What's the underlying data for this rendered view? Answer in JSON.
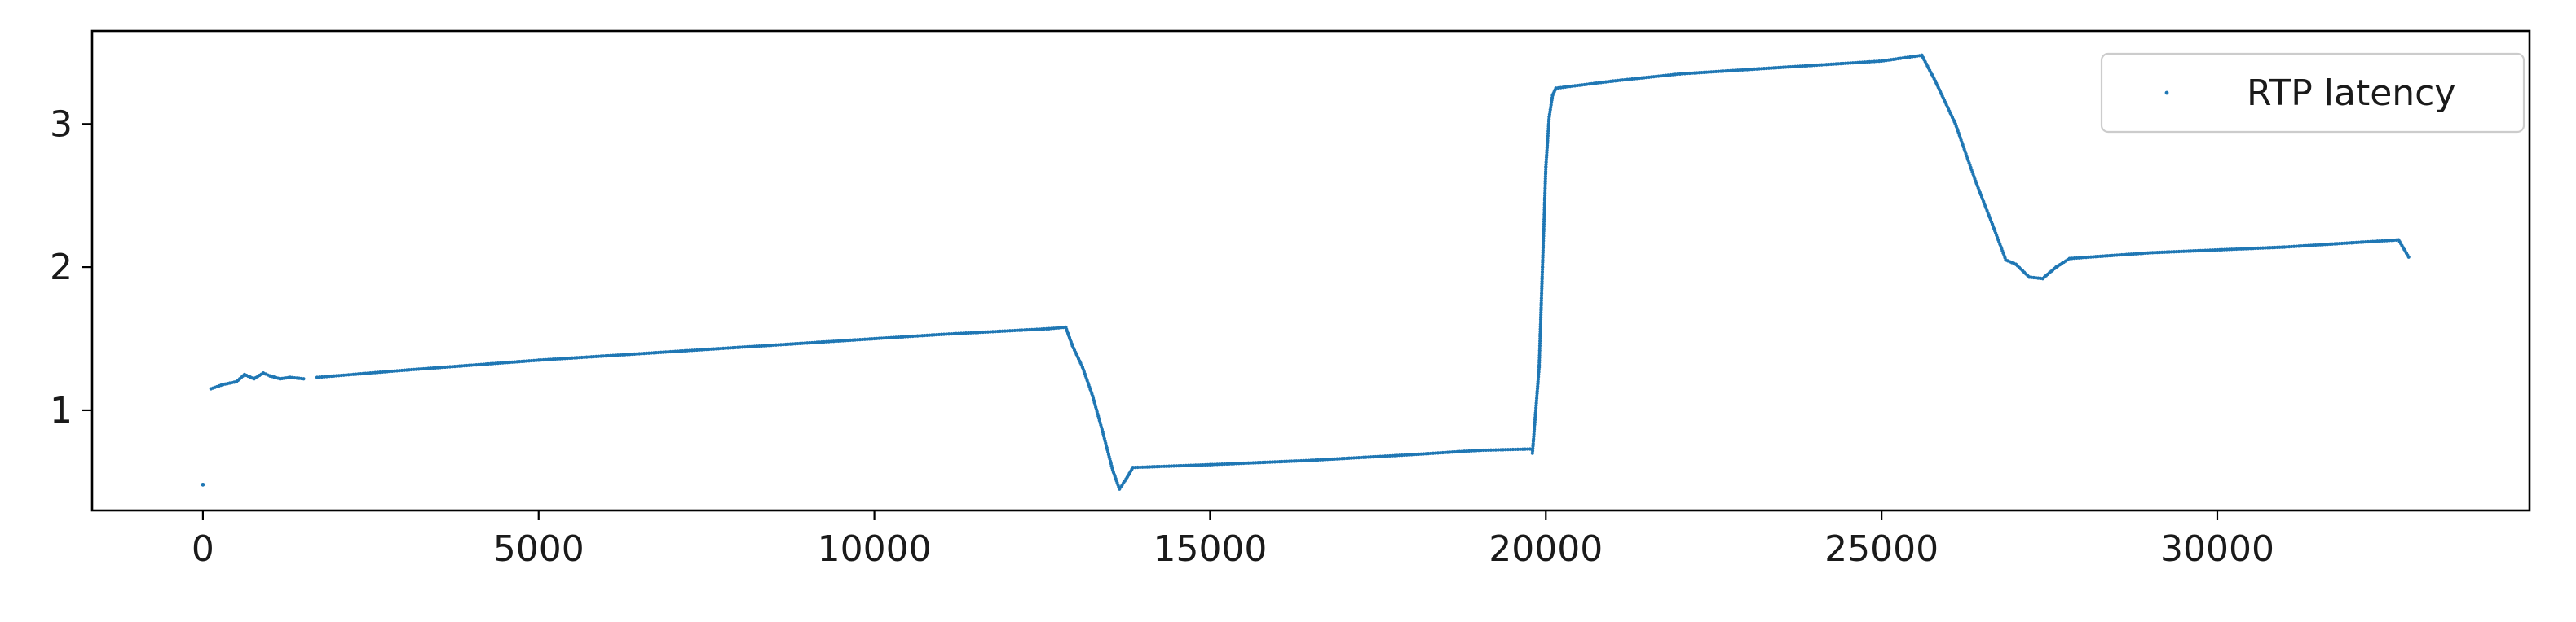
{
  "chart_data": {
    "type": "scatter",
    "title": "",
    "xlabel": "",
    "ylabel": "",
    "xlim": [
      -1650,
      34650
    ],
    "ylim": [
      0.3,
      3.65
    ],
    "x_ticks": [
      0,
      5000,
      10000,
      15000,
      20000,
      25000,
      30000
    ],
    "y_ticks": [
      1,
      2,
      3
    ],
    "grid": false,
    "legend": {
      "position": "top-right",
      "entries": [
        "RTP latency"
      ]
    },
    "colors": {
      "series": "#1f77b4",
      "axis": "#000000",
      "background": "#ffffff"
    },
    "series": [
      {
        "name": "RTP latency",
        "marker": "point",
        "segments": [
          {
            "points": [
              [
                0,
                0.48
              ]
            ]
          },
          {
            "points": [
              [
                120,
                1.15
              ],
              [
                300,
                1.18
              ],
              [
                500,
                1.2
              ],
              [
                620,
                1.25
              ],
              [
                760,
                1.22
              ],
              [
                900,
                1.26
              ],
              [
                1000,
                1.24
              ],
              [
                1150,
                1.22
              ],
              [
                1300,
                1.23
              ],
              [
                1500,
                1.22
              ]
            ]
          },
          {
            "points": [
              [
                1700,
                1.23
              ],
              [
                3000,
                1.28
              ],
              [
                5000,
                1.35
              ],
              [
                7000,
                1.41
              ],
              [
                9000,
                1.47
              ],
              [
                11000,
                1.53
              ],
              [
                12600,
                1.57
              ],
              [
                12850,
                1.58
              ]
            ]
          },
          {
            "points": [
              [
                12850,
                1.58
              ],
              [
                12950,
                1.45
              ],
              [
                13100,
                1.3
              ],
              [
                13250,
                1.1
              ],
              [
                13400,
                0.85
              ],
              [
                13550,
                0.58
              ],
              [
                13650,
                0.45
              ],
              [
                13750,
                0.52
              ],
              [
                13850,
                0.6
              ]
            ]
          },
          {
            "points": [
              [
                13850,
                0.6
              ],
              [
                15000,
                0.62
              ],
              [
                16500,
                0.65
              ],
              [
                18000,
                0.69
              ],
              [
                19000,
                0.72
              ],
              [
                19800,
                0.73
              ]
            ]
          },
          {
            "points": [
              [
                19800,
                0.7
              ],
              [
                19900,
                1.3
              ],
              [
                19950,
                2.0
              ],
              [
                20000,
                2.7
              ],
              [
                20050,
                3.05
              ],
              [
                20100,
                3.2
              ],
              [
                20150,
                3.25
              ]
            ]
          },
          {
            "points": [
              [
                20150,
                3.25
              ],
              [
                21000,
                3.3
              ],
              [
                22000,
                3.35
              ],
              [
                23000,
                3.38
              ],
              [
                24000,
                3.41
              ],
              [
                25000,
                3.44
              ],
              [
                25600,
                3.48
              ]
            ]
          },
          {
            "points": [
              [
                25600,
                3.48
              ],
              [
                25800,
                3.3
              ],
              [
                26100,
                3.0
              ],
              [
                26400,
                2.6
              ],
              [
                26650,
                2.3
              ],
              [
                26850,
                2.05
              ],
              [
                27000,
                2.02
              ],
              [
                27200,
                1.93
              ],
              [
                27400,
                1.92
              ],
              [
                27600,
                2.0
              ],
              [
                27800,
                2.06
              ]
            ]
          },
          {
            "points": [
              [
                27800,
                2.06
              ],
              [
                29000,
                2.1
              ],
              [
                30000,
                2.12
              ],
              [
                31000,
                2.14
              ],
              [
                32000,
                2.17
              ],
              [
                32700,
                2.19
              ],
              [
                32850,
                2.07
              ]
            ]
          }
        ]
      }
    ]
  }
}
